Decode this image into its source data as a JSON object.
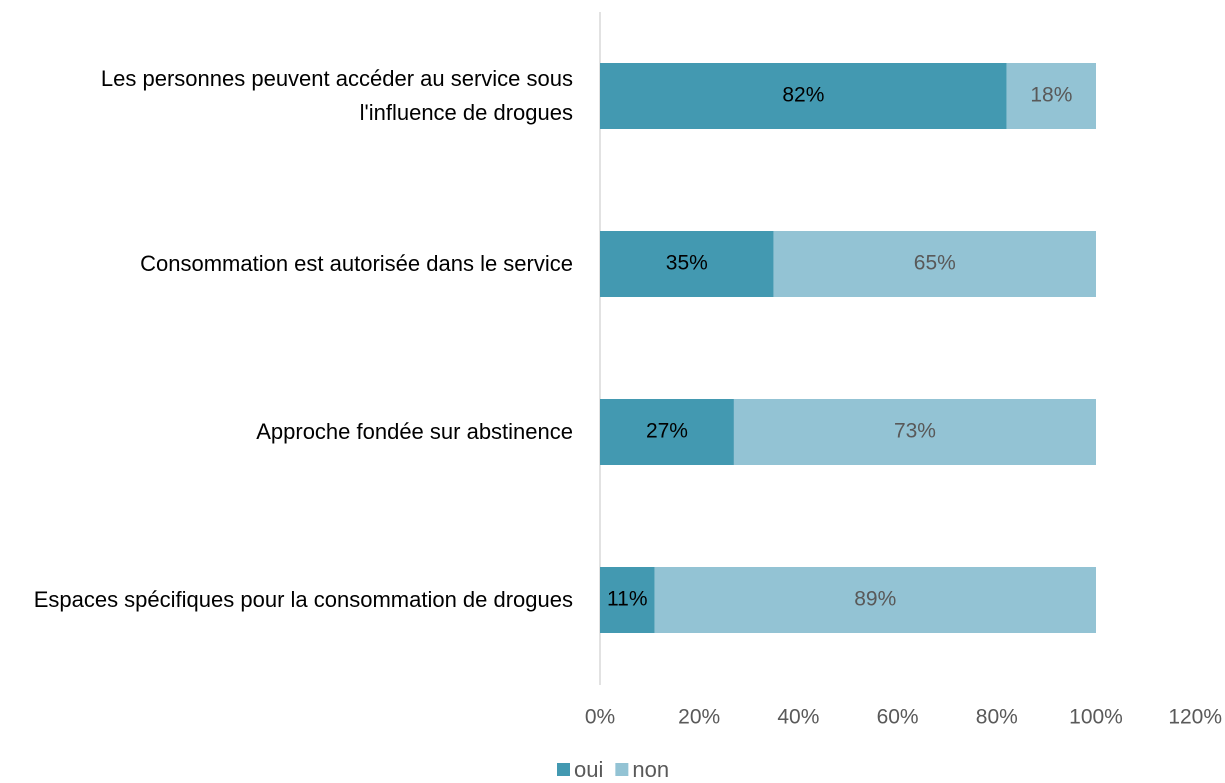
{
  "chart_data": {
    "type": "bar",
    "orientation": "horizontal",
    "stacked": true,
    "categories": [
      "Les personnes peuvent accéder au service sous l'influence de drogues",
      "Consommation est autorisée dans le service",
      "Approche fondée sur abstinence",
      "Espaces spécifiques pour la consommation de drogues"
    ],
    "series": [
      {
        "name": "oui",
        "color": "#4399b1",
        "values": [
          82,
          35,
          27,
          11
        ],
        "value_labels": [
          "82%",
          "35%",
          "27%",
          "11%"
        ]
      },
      {
        "name": "non",
        "color": "#93c3d4",
        "values": [
          18,
          65,
          73,
          89
        ],
        "value_labels": [
          "18%",
          "65%",
          "73%",
          "89%"
        ]
      }
    ],
    "xlim": [
      0,
      120
    ],
    "xticks": [
      {
        "value": 0,
        "label": "0%"
      },
      {
        "value": 20,
        "label": "20%"
      },
      {
        "value": 40,
        "label": "40%"
      },
      {
        "value": 60,
        "label": "60%"
      },
      {
        "value": 80,
        "label": "80%"
      },
      {
        "value": 100,
        "label": "100%"
      },
      {
        "value": 120,
        "label": "120%"
      }
    ],
    "legend": "bottom"
  }
}
